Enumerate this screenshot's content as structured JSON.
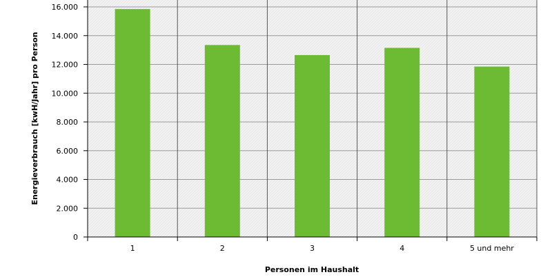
{
  "chart_data": {
    "type": "bar",
    "categories": [
      "1",
      "2",
      "3",
      "4",
      "5 und mehr"
    ],
    "values": [
      15850,
      13350,
      12650,
      13150,
      11850
    ],
    "xlabel": "Personen im Haushalt",
    "ylabel": "Energieverbrauch [kwH/Jahr] pro Person",
    "ylim": [
      0,
      16000
    ],
    "yticks": [
      "0",
      "2.000",
      "4.000",
      "6.000",
      "8.000",
      "10.000",
      "12.000",
      "14.000",
      "16.000"
    ],
    "grid": true,
    "bar_color": "#6cbb33",
    "plot_background": "hatched light gray"
  }
}
